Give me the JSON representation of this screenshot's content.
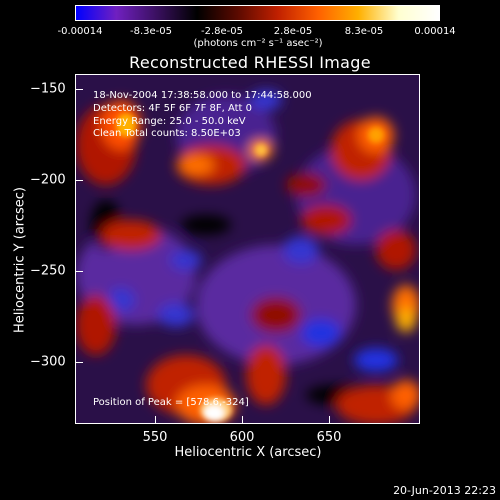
{
  "colorbar": {
    "ticks": [
      "-0.00014",
      "-8.3e-05",
      "-2.8e-05",
      "2.8e-05",
      "8.3e-05",
      "0.00014"
    ],
    "units": "(photons cm⁻² s⁻¹ asec⁻²)",
    "colors": [
      "#0000ff",
      "#7020c0",
      "#3a1060",
      "#000000",
      "#5a0a00",
      "#c02000",
      "#ff6000",
      "#ffb000",
      "#ffffd0",
      "#ffffff"
    ]
  },
  "title": "Reconstructed RHESSI Image",
  "info": {
    "time": "18-Nov-2004 17:38:58.000 to 17:44:58.000",
    "detectors": "Detectors: 4F 5F 6F 7F 8F, Att 0",
    "energy": "Energy Range: 25.0 - 50.0 keV",
    "clean": "Clean    Total counts: 8.50E+03"
  },
  "peak_label": "Position of Peak = [578.6,-324]",
  "axes": {
    "xlabel": "Heliocentric X (arcsec)",
    "ylabel": "Heliocentric Y (arcsec)",
    "xticks": [
      "550",
      "600",
      "650"
    ],
    "yticks": [
      "-150",
      "-200",
      "-250",
      "-300"
    ]
  },
  "datestamp": "20-Jun-2013 22:23"
}
